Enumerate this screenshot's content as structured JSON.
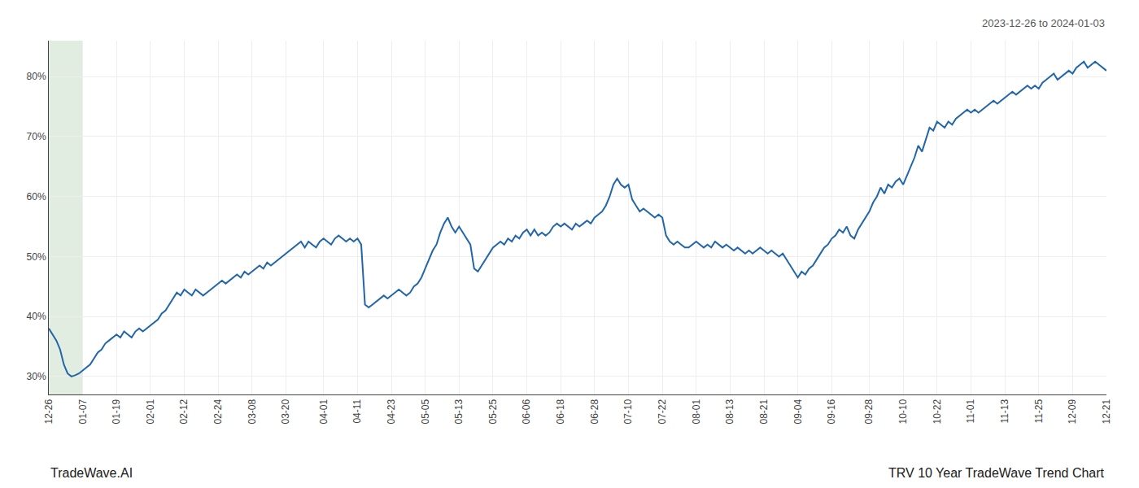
{
  "chart_data": {
    "type": "line",
    "title": "TRV 10 Year TradeWave Trend Chart",
    "subtitle": "2023-12-26 to 2024-01-03",
    "annotations": [
      "TradeWave.AI"
    ],
    "categories": [
      "12-26",
      null,
      null,
      null,
      null,
      null,
      null,
      null,
      null,
      "01-07",
      null,
      null,
      null,
      null,
      null,
      null,
      null,
      null,
      "01-19",
      null,
      null,
      null,
      null,
      null,
      null,
      null,
      null,
      "02-01",
      null,
      null,
      null,
      null,
      null,
      null,
      null,
      null,
      "02-12",
      null,
      null,
      null,
      null,
      null,
      null,
      null,
      null,
      "02-24",
      null,
      null,
      null,
      null,
      null,
      null,
      null,
      null,
      "03-08",
      null,
      null,
      null,
      null,
      null,
      null,
      null,
      null,
      "03-20",
      null,
      null,
      null,
      null,
      null,
      null,
      null,
      null,
      null,
      "04-01",
      null,
      null,
      null,
      null,
      null,
      null,
      null,
      null,
      "04-11",
      null,
      null,
      null,
      null,
      null,
      null,
      null,
      null,
      "04-23",
      null,
      null,
      null,
      null,
      null,
      null,
      null,
      null,
      "05-05",
      null,
      null,
      null,
      null,
      null,
      null,
      null,
      null,
      "05-13",
      null,
      null,
      null,
      null,
      null,
      null,
      null,
      null,
      "05-25",
      null,
      null,
      null,
      null,
      null,
      null,
      null,
      null,
      "06-06",
      null,
      null,
      null,
      null,
      null,
      null,
      null,
      null,
      "06-18",
      null,
      null,
      null,
      null,
      null,
      null,
      null,
      null,
      "06-28",
      null,
      null,
      null,
      null,
      null,
      null,
      null,
      null,
      "07-10",
      null,
      null,
      null,
      null,
      null,
      null,
      null,
      null,
      "07-22",
      null,
      null,
      null,
      null,
      null,
      null,
      null,
      null,
      "08-01",
      null,
      null,
      null,
      null,
      null,
      null,
      null,
      null,
      "08-13",
      null,
      null,
      null,
      null,
      null,
      null,
      null,
      null,
      "08-21",
      null,
      null,
      null,
      null,
      null,
      null,
      null,
      null,
      "09-04",
      null,
      null,
      null,
      null,
      null,
      null,
      null,
      null,
      "09-16",
      null,
      null,
      null,
      null,
      null,
      null,
      null,
      null,
      null,
      "09-28",
      null,
      null,
      null,
      null,
      null,
      null,
      null,
      null,
      "10-10",
      null,
      null,
      null,
      null,
      null,
      null,
      null,
      null,
      "10-22",
      null,
      null,
      null,
      null,
      null,
      null,
      null,
      null,
      "11-01",
      null,
      null,
      null,
      null,
      null,
      null,
      null,
      null,
      "11-13",
      null,
      null,
      null,
      null,
      null,
      null,
      null,
      null,
      "11-25",
      null,
      null,
      null,
      null,
      null,
      null,
      null,
      null,
      "12-09",
      null,
      null,
      null,
      null,
      null,
      null,
      null,
      null,
      "12-21"
    ],
    "values": [
      38.0,
      37.0,
      36.0,
      34.5,
      32.0,
      30.5,
      30.0,
      30.2,
      30.5,
      31.0,
      31.5,
      32.0,
      33.0,
      34.0,
      34.5,
      35.5,
      36.0,
      36.5,
      37.0,
      36.5,
      37.5,
      37.0,
      36.5,
      37.5,
      38.0,
      37.5,
      38.0,
      38.5,
      39.0,
      39.5,
      40.5,
      41.0,
      42.0,
      43.0,
      44.0,
      43.5,
      44.5,
      44.0,
      43.5,
      44.5,
      44.0,
      43.5,
      44.0,
      44.5,
      45.0,
      45.5,
      46.0,
      45.5,
      46.0,
      46.5,
      47.0,
      46.5,
      47.5,
      47.0,
      47.5,
      48.0,
      48.5,
      48.0,
      49.0,
      48.5,
      49.0,
      49.5,
      50.0,
      50.5,
      51.0,
      51.5,
      52.0,
      52.5,
      51.5,
      52.5,
      52.0,
      51.5,
      52.5,
      53.0,
      52.5,
      52.0,
      53.0,
      53.5,
      53.0,
      52.5,
      53.0,
      52.5,
      53.0,
      52.0,
      42.0,
      41.5,
      42.0,
      42.5,
      43.0,
      43.5,
      43.0,
      43.5,
      44.0,
      44.5,
      44.0,
      43.5,
      44.0,
      45.0,
      45.5,
      46.5,
      48.0,
      49.5,
      51.0,
      52.0,
      54.0,
      55.5,
      56.5,
      55.0,
      54.0,
      55.0,
      54.0,
      53.0,
      52.0,
      48.0,
      47.5,
      48.5,
      49.5,
      50.5,
      51.5,
      52.0,
      52.5,
      52.0,
      53.0,
      52.5,
      53.5,
      53.0,
      54.0,
      54.5,
      53.5,
      54.5,
      53.5,
      54.0,
      53.5,
      54.0,
      55.0,
      55.5,
      55.0,
      55.5,
      55.0,
      54.5,
      55.5,
      55.0,
      55.5,
      56.0,
      55.5,
      56.5,
      57.0,
      57.5,
      58.5,
      60.0,
      62.0,
      63.0,
      62.0,
      61.5,
      62.0,
      59.5,
      58.5,
      57.5,
      58.0,
      57.5,
      57.0,
      56.5,
      57.0,
      56.5,
      53.5,
      52.5,
      52.0,
      52.5,
      52.0,
      51.5,
      51.5,
      52.0,
      52.5,
      52.0,
      51.5,
      52.0,
      51.5,
      52.5,
      52.0,
      51.5,
      52.0,
      51.5,
      51.0,
      51.5,
      51.0,
      50.5,
      51.0,
      50.5,
      51.0,
      51.5,
      51.0,
      50.5,
      51.0,
      50.5,
      50.0,
      50.5,
      49.5,
      48.5,
      47.5,
      46.5,
      47.5,
      47.0,
      48.0,
      48.5,
      49.5,
      50.5,
      51.5,
      52.0,
      53.0,
      53.5,
      54.5,
      54.0,
      55.0,
      53.5,
      53.0,
      54.5,
      55.5,
      56.5,
      57.5,
      59.0,
      60.0,
      61.5,
      60.5,
      62.0,
      61.5,
      62.5,
      63.0,
      62.0,
      63.5,
      65.0,
      66.5,
      68.5,
      67.5,
      69.5,
      71.5,
      71.0,
      72.5,
      72.0,
      71.5,
      72.5,
      72.0,
      73.0,
      73.5,
      74.0,
      74.5,
      74.0,
      74.5,
      74.0,
      74.5,
      75.0,
      75.5,
      76.0,
      75.5,
      76.0,
      76.5,
      77.0,
      77.5,
      77.0,
      77.5,
      78.0,
      78.5,
      78.0,
      78.5,
      78.0,
      79.0,
      79.5,
      80.0,
      80.5,
      79.5,
      80.0,
      80.5,
      81.0,
      80.5,
      81.5,
      82.0,
      82.5,
      81.5,
      82.0,
      82.5,
      82.0,
      81.5,
      81.0
    ],
    "color": "#2266aa",
    "ylim": [
      27,
      86
    ],
    "yticks": [
      {
        "value": 30,
        "label": "30%"
      },
      {
        "value": 40,
        "label": "40%"
      },
      {
        "value": 50,
        "label": "50%"
      },
      {
        "value": 60,
        "label": "60%"
      },
      {
        "value": 70,
        "label": "70%"
      },
      {
        "value": 80,
        "label": "80%"
      }
    ],
    "grid": true,
    "highlight": {
      "start": "12-26",
      "end": "01-07",
      "color": "#c8dfc8"
    }
  }
}
